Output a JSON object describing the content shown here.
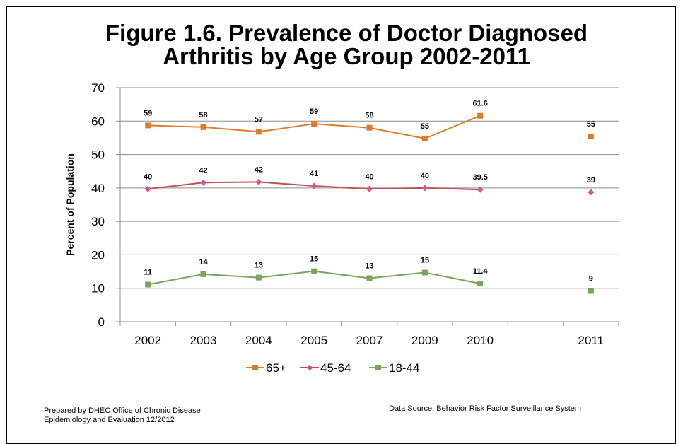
{
  "title_line1": "Figure 1.6.  Prevalence of Doctor Diagnosed",
  "title_line2": "Arthritis by Age Group 2002-2011",
  "footer": {
    "prepared_line1": "Prepared by DHEC Office of Chronic Disease",
    "prepared_line2": "Epidemiology and Evaluation 12/2012",
    "source": "Data Source:  Behavior Risk Factor Surveillance System"
  },
  "chart_data": {
    "type": "line",
    "title": "Figure 1.6.  Prevalence of Doctor Diagnosed Arthritis by Age Group 2002-2011",
    "xlabel": "",
    "ylabel": "Percent of Population",
    "ylim": [
      0,
      70
    ],
    "yticks": [
      0,
      10,
      20,
      30,
      40,
      50,
      60,
      70
    ],
    "grid": true,
    "legend_position": "bottom",
    "categories": [
      "2002",
      "2003",
      "2004",
      "2005",
      "2007",
      "2009",
      "2010",
      "",
      "2011"
    ],
    "series": [
      {
        "name": "65+",
        "color": "#E07B2A",
        "marker": "square",
        "values": [
          58.7,
          58.2,
          56.8,
          59.2,
          58.0,
          54.8,
          61.6,
          null,
          55.4
        ],
        "labels": [
          "59",
          "58",
          "57",
          "59",
          "58",
          "55",
          "61.6",
          "",
          "55"
        ]
      },
      {
        "name": "45-64",
        "color": "#C0504D",
        "markerColor": "#D9538F",
        "marker": "diamond",
        "values": [
          39.7,
          41.6,
          41.8,
          40.6,
          39.7,
          40.0,
          39.5,
          null,
          38.7
        ],
        "labels": [
          "40",
          "42",
          "42",
          "41",
          "40",
          "40",
          "39.5",
          "",
          "39"
        ]
      },
      {
        "name": "18-44",
        "color": "#77A55A",
        "marker": "square",
        "values": [
          11.1,
          14.2,
          13.2,
          15.1,
          13.0,
          14.7,
          11.4,
          null,
          9.2
        ],
        "labels": [
          "11",
          "14",
          "13",
          "15",
          "13",
          "15",
          "11.4",
          "",
          "9"
        ]
      }
    ]
  }
}
